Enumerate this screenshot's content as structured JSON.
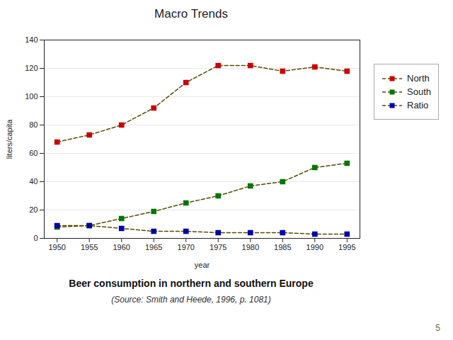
{
  "chart_data": {
    "type": "line",
    "title": "Macro Trends",
    "x": [
      1950,
      1955,
      1960,
      1965,
      1970,
      1975,
      1980,
      1985,
      1990,
      1995
    ],
    "series": [
      {
        "name": "North",
        "color": "#cc0000",
        "values": [
          68,
          73,
          80,
          92,
          110,
          122,
          122,
          118,
          121,
          118
        ]
      },
      {
        "name": "South",
        "color": "#007700",
        "values": [
          8,
          9,
          14,
          19,
          25,
          30,
          37,
          40,
          50,
          53
        ]
      },
      {
        "name": "Ratio",
        "color": "#0000aa",
        "values": [
          9,
          9,
          7,
          5,
          5,
          4,
          4,
          4,
          3,
          3
        ]
      }
    ],
    "color": "#5a4a00",
    "marker": "square",
    "line_style": "dashed",
    "xlabel": "year",
    "ylabel": "liters/capita",
    "xlim": [
      1948,
      1997
    ],
    "xticks": [
      1950,
      1955,
      1960,
      1965,
      1970,
      1975,
      1980,
      1985,
      1990,
      1995
    ],
    "ylim": [
      0,
      140
    ],
    "yticks": [
      0,
      20,
      40,
      60,
      80,
      100,
      120,
      140
    ],
    "grid": true,
    "legend": "right",
    "annotations": [
      "Beer consumption in northern and southern Europe",
      "(Source: Smith and Heede, 1996, p. 1081)",
      "5"
    ]
  }
}
